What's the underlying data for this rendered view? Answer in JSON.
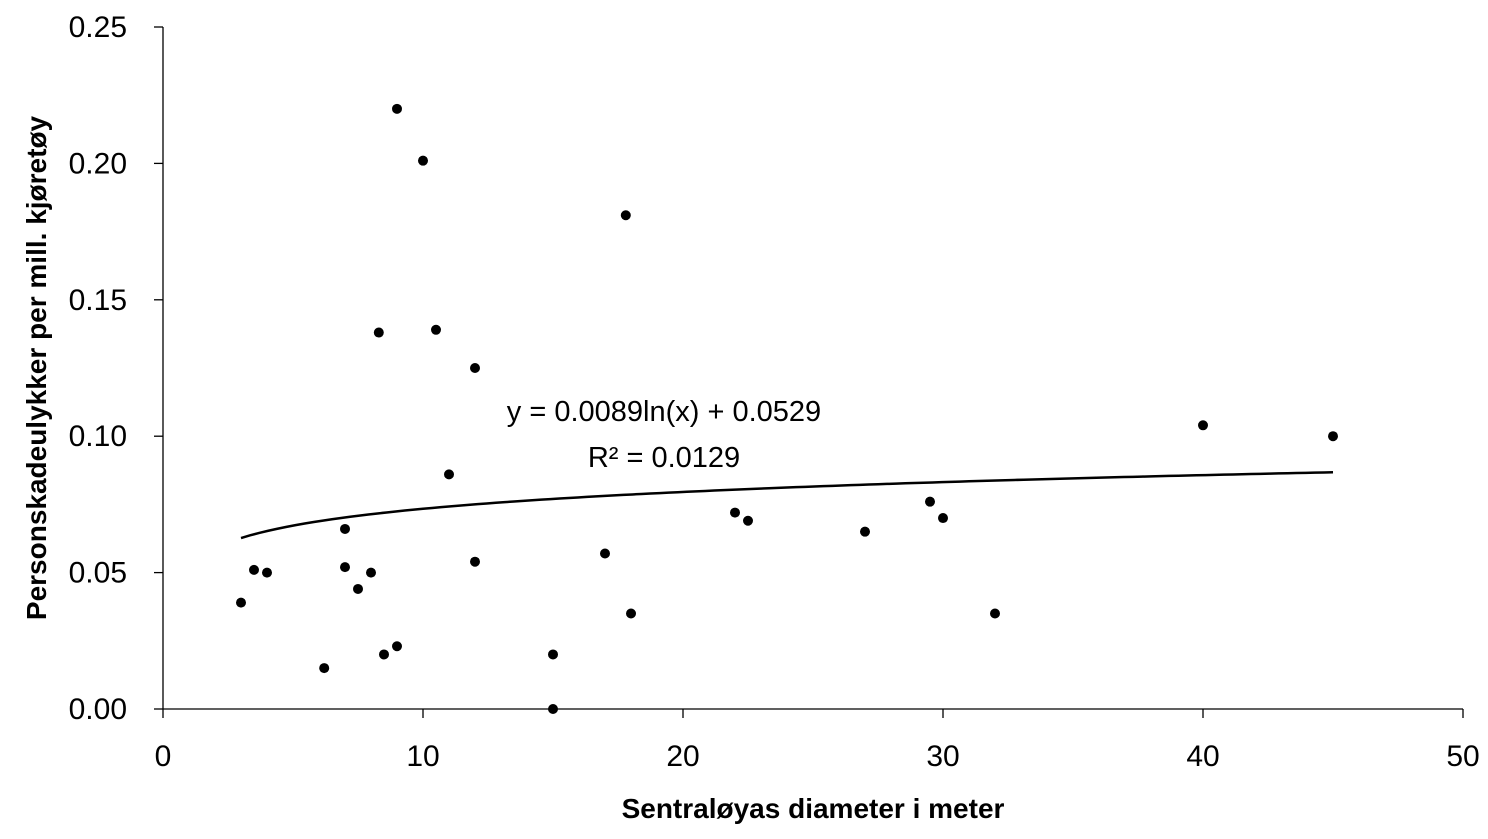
{
  "chart_data": {
    "type": "scatter",
    "title": "",
    "xlabel": "Sentraløyas diameter i meter",
    "ylabel": "Personskadeulykker per mill. kjøretøy",
    "xlim": [
      0,
      50
    ],
    "ylim": [
      0,
      0.25
    ],
    "x_ticks": [
      "0",
      "10",
      "20",
      "30",
      "40",
      "50"
    ],
    "y_ticks": [
      "0.00",
      "0.05",
      "0.10",
      "0.15",
      "0.20",
      "0.25"
    ],
    "grid": false,
    "legend": "none",
    "series": [
      {
        "points": [
          {
            "x": 3,
            "y": 0.039
          },
          {
            "x": 3.5,
            "y": 0.051
          },
          {
            "x": 4,
            "y": 0.05
          },
          {
            "x": 6.2,
            "y": 0.015
          },
          {
            "x": 7,
            "y": 0.066
          },
          {
            "x": 7,
            "y": 0.052
          },
          {
            "x": 7.5,
            "y": 0.044
          },
          {
            "x": 8,
            "y": 0.05
          },
          {
            "x": 8.3,
            "y": 0.138
          },
          {
            "x": 8.5,
            "y": 0.02
          },
          {
            "x": 9,
            "y": 0.22
          },
          {
            "x": 9,
            "y": 0.023
          },
          {
            "x": 10,
            "y": 0.201
          },
          {
            "x": 10.5,
            "y": 0.139
          },
          {
            "x": 11,
            "y": 0.086
          },
          {
            "x": 12,
            "y": 0.125
          },
          {
            "x": 12,
            "y": 0.054
          },
          {
            "x": 15,
            "y": 0.02
          },
          {
            "x": 15,
            "y": 0.0
          },
          {
            "x": 17,
            "y": 0.057
          },
          {
            "x": 17.8,
            "y": 0.181
          },
          {
            "x": 18,
            "y": 0.035
          },
          {
            "x": 22,
            "y": 0.072
          },
          {
            "x": 22.5,
            "y": 0.069
          },
          {
            "x": 27,
            "y": 0.065
          },
          {
            "x": 29.5,
            "y": 0.076
          },
          {
            "x": 30,
            "y": 0.07
          },
          {
            "x": 32,
            "y": 0.035
          },
          {
            "x": 40,
            "y": 0.104
          },
          {
            "x": 45,
            "y": 0.1
          }
        ],
        "color": "#000000"
      }
    ],
    "trendline": {
      "type": "logarithmic",
      "a": 0.0089,
      "b": 0.0529,
      "x_range": [
        3,
        45
      ],
      "equation_label": "y = 0.0089ln(x) + 0.0529",
      "r2_label": "R² = 0.0129"
    }
  }
}
